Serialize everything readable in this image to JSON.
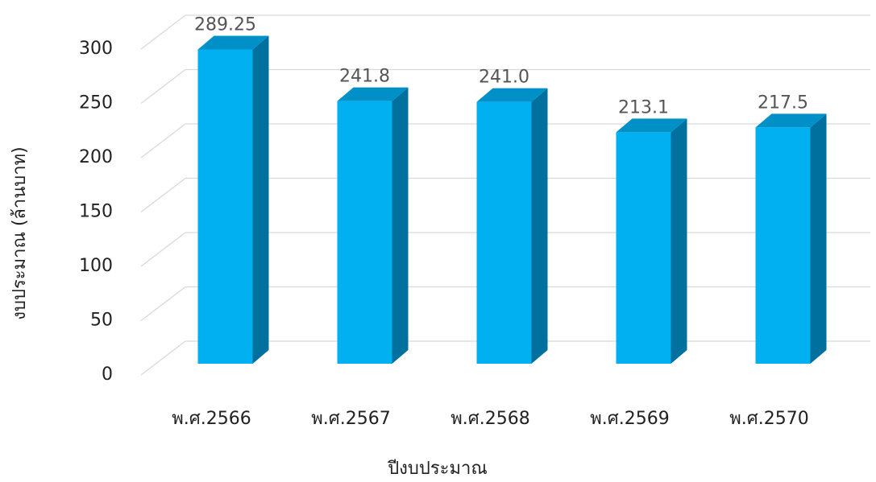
{
  "chart_data": {
    "type": "bar3d",
    "categories": [
      "พ.ศ.2566",
      "พ.ศ.2567",
      "พ.ศ.2568",
      "พ.ศ.2569",
      "พ.ศ.2570"
    ],
    "values": [
      289.25,
      241.8,
      241.0,
      213.1,
      217.5
    ],
    "value_labels": [
      "289.25",
      "241.8",
      "241.0",
      "213.1",
      "217.5"
    ],
    "color": "#00b0f0",
    "ylim": [
      0,
      300
    ],
    "yticks": [
      0,
      50,
      100,
      150,
      200,
      250,
      300
    ],
    "grid": true,
    "x_label": "ปีงบประมาณ",
    "y_label": "งบประมาณ (ล้านบาท)"
  }
}
